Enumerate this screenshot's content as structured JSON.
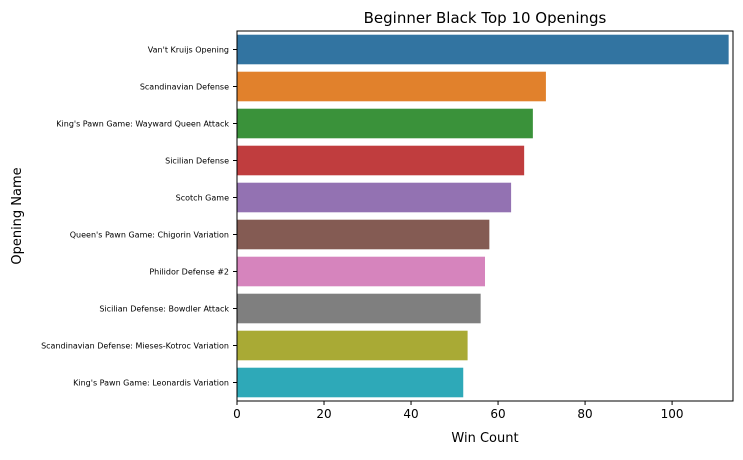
{
  "chart_data": {
    "type": "bar",
    "orientation": "horizontal",
    "title": "Beginner Black Top 10 Openings",
    "xlabel": "Win Count",
    "ylabel": "Opening Name",
    "xlim": [
      0,
      114
    ],
    "xticks": [
      0,
      20,
      40,
      60,
      80,
      100
    ],
    "grid": false,
    "categories": [
      "Van't Kruijs Opening",
      "Scandinavian Defense",
      "King's Pawn Game: Wayward Queen Attack",
      "Sicilian Defense",
      "Scotch Game",
      "Queen's Pawn Game: Chigorin Variation",
      "Philidor Defense #2",
      "Sicilian Defense: Bowdler Attack",
      "Scandinavian Defense: Mieses-Kotroc Variation",
      "King's Pawn Game: Leonardis Variation"
    ],
    "values": [
      113,
      71,
      68,
      66,
      63,
      58,
      57,
      56,
      53,
      52
    ],
    "colors": [
      "#3274a1",
      "#e1812c",
      "#3a923a",
      "#c03d3e",
      "#9372b2",
      "#845b53",
      "#d684bd",
      "#7f7f7f",
      "#a9aa35",
      "#2ea9b8"
    ]
  }
}
